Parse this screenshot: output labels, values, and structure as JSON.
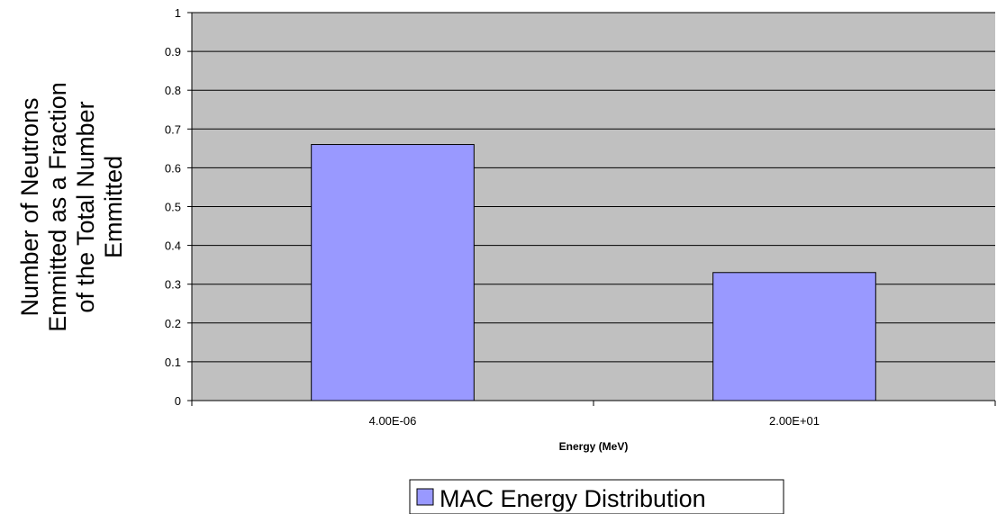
{
  "chart_data": {
    "type": "bar",
    "categories": [
      "4.00E-06",
      "2.00E+01"
    ],
    "series": [
      {
        "name": "MAC Energy Distribution",
        "values": [
          0.66,
          0.33
        ],
        "color": "#9999ff"
      }
    ],
    "xlabel": "Energy (MeV)",
    "ylabel_lines": [
      "Number of Neutrons",
      "Emmitted as a Fraction",
      "of the Total Number",
      "Emmitted"
    ],
    "ylim": [
      0,
      1
    ],
    "yticks": [
      "0",
      "0.1",
      "0.2",
      "0.3",
      "0.4",
      "0.5",
      "0.6",
      "0.7",
      "0.8",
      "0.9",
      "1"
    ],
    "grid": true,
    "plot_background": "#c0c0c0",
    "legend_position": "bottom-center"
  }
}
